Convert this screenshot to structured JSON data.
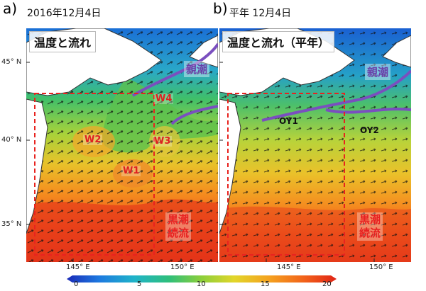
{
  "panels": [
    {
      "letter": "a)",
      "date": "2016年12月4日",
      "title": "温度と流れ"
    },
    {
      "letter": "b)",
      "date": "平年  12月4日",
      "title": "温度と流れ（平年）"
    }
  ],
  "labels": {
    "oyashio": "親潮",
    "kuroshio_line1": "黒潮",
    "kuroshio_line2": "続流",
    "warm_eddies": [
      "W1",
      "W2",
      "W3",
      "W4"
    ],
    "oyashio_intrusions": [
      "OY1",
      "OY2"
    ]
  },
  "axes": {
    "lat_ticks": [
      "45° N",
      "40° N",
      "35° N"
    ],
    "lon_ticks": [
      "145° E",
      "150° E"
    ]
  },
  "colorbar": {
    "ticks": [
      "0",
      "5",
      "10",
      "15",
      "20"
    ],
    "range": [
      0,
      22
    ],
    "colors": [
      "#1a2ab8",
      "#1d79e0",
      "#1fb3c9",
      "#2fbf7a",
      "#8ccf3a",
      "#e2d62a",
      "#f4a21f",
      "#f2621a",
      "#e02416"
    ]
  },
  "colors": {
    "oyashio_front": "#7a4fbf",
    "study_box": "#e8231f",
    "land": "#ffffff"
  }
}
